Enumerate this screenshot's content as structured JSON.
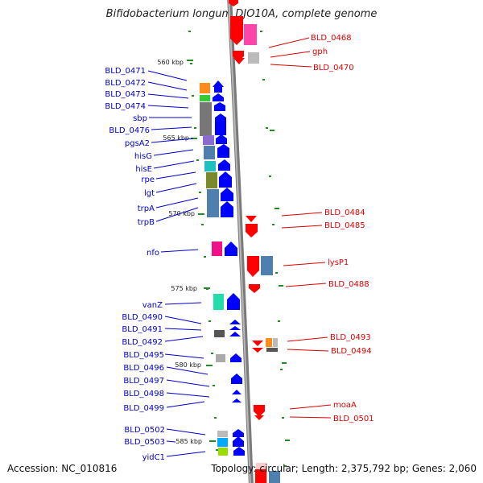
{
  "title": "Bifidobacterium longum DJO10A, complete genome",
  "footer": {
    "accession": "Accession: NC_010816",
    "stats": "Topology: circular; Length: 2,375,792 bp; Genes: 2,060"
  },
  "scale_labels": [
    "560 kbp",
    "565 kbp",
    "570 kbp",
    "575 kbp",
    "580 kbp",
    "585 kbp"
  ],
  "left_labels": [
    "BLD_0471",
    "BLD_0472",
    "BLD_0473",
    "BLD_0474",
    "sbp",
    "BLD_0476",
    "pgsA2",
    "hisG",
    "hisE",
    "rpe",
    "lgt",
    "trpA",
    "trpB",
    "nfo",
    "vanZ",
    "BLD_0490",
    "BLD_0491",
    "BLD_0492",
    "BLD_0495",
    "BLD_0496",
    "BLD_0497",
    "BLD_0498",
    "BLD_0499",
    "BLD_0502",
    "BLD_0503",
    "yidC1"
  ],
  "right_labels": [
    "BLD_0468",
    "gph",
    "BLD_0470",
    "BLD_0484",
    "BLD_0485",
    "lysP1",
    "BLD_0488",
    "BLD_0493",
    "BLD_0494",
    "moaA",
    "BLD_0501"
  ],
  "colors": {
    "forward_strand": "#0000ff",
    "reverse_strand": "#ff0000",
    "forward_label": "#0000cc",
    "reverse_label": "#dd0000",
    "backbone": "#808080",
    "tick": "#228b22"
  }
}
